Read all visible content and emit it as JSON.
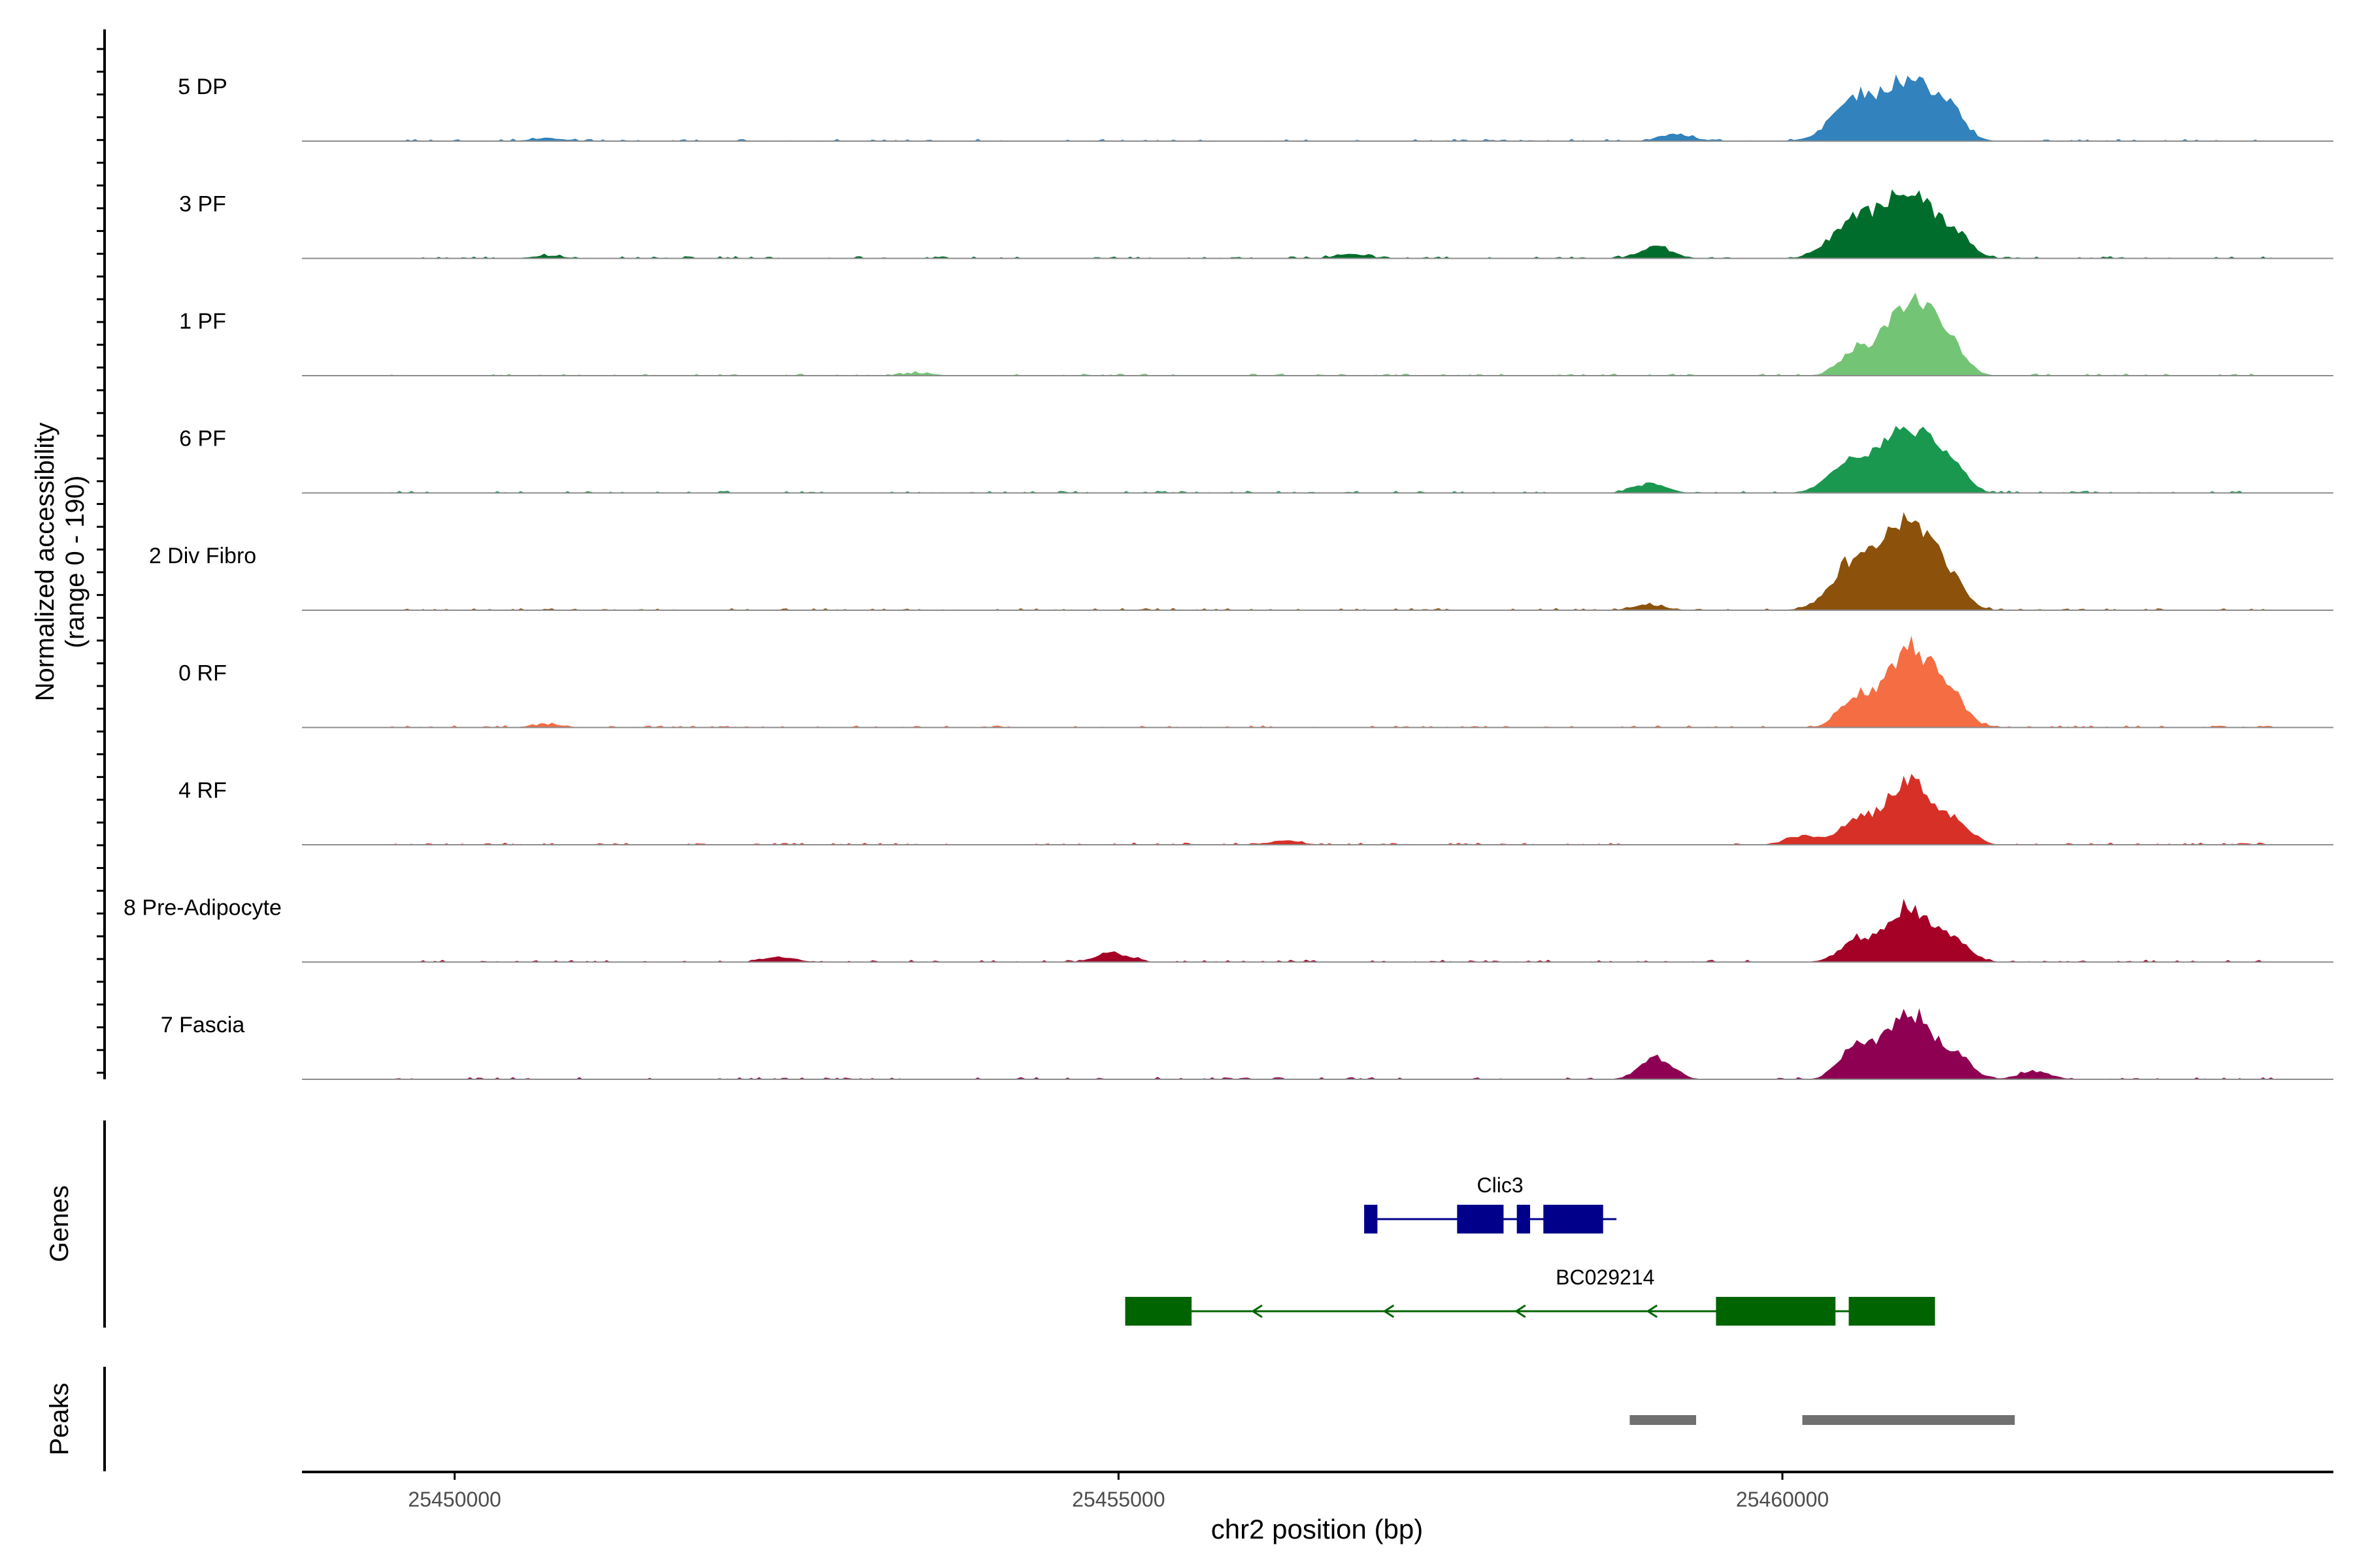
{
  "chart_data": {
    "type": "area",
    "title": "",
    "xlabel": "chr2 position (bp)",
    "ylabel": [
      "Normalized accessibility",
      "(range 0 - 190)"
    ],
    "ylim": [
      0,
      190
    ],
    "xlim": [
      25448850,
      25464150
    ],
    "x_ticks": [
      25450000,
      25455000,
      25460000
    ],
    "x_tick_labels": [
      "25450000",
      "25455000",
      "25460000"
    ],
    "coverage_tracks": [
      {
        "name": "5 DP",
        "color": "#3182bd",
        "peaks": [
          [
            25450700,
            6
          ],
          [
            25459200,
            14
          ],
          [
            25460550,
            80
          ],
          [
            25460950,
            115
          ],
          [
            25461250,
            55
          ]
        ]
      },
      {
        "name": "3 PF",
        "color": "#006d2c",
        "peaks": [
          [
            25450700,
            5
          ],
          [
            25456750,
            8
          ],
          [
            25459050,
            22
          ],
          [
            25460550,
            75
          ],
          [
            25460950,
            130
          ],
          [
            25461300,
            45
          ]
        ]
      },
      {
        "name": "1 PF",
        "color": "#74c476",
        "peaks": [
          [
            25453500,
            5
          ],
          [
            25460550,
            45
          ],
          [
            25460950,
            140
          ],
          [
            25461250,
            60
          ]
        ]
      },
      {
        "name": "6 PF",
        "color": "#1a9850",
        "peaks": [
          [
            25459000,
            18
          ],
          [
            25460550,
            65
          ],
          [
            25460950,
            120
          ],
          [
            25461250,
            55
          ]
        ]
      },
      {
        "name": "2 Div Fibro",
        "color": "#8c510a",
        "peaks": [
          [
            25459000,
            10
          ],
          [
            25460550,
            95
          ],
          [
            25460950,
            170
          ],
          [
            25461250,
            55
          ]
        ]
      },
      {
        "name": "0 RF",
        "color": "#f46d43",
        "peaks": [
          [
            25450700,
            6
          ],
          [
            25460550,
            55
          ],
          [
            25460950,
            150
          ],
          [
            25461250,
            60
          ]
        ]
      },
      {
        "name": "4 RF",
        "color": "#d73027",
        "peaks": [
          [
            25456250,
            8
          ],
          [
            25460150,
            18
          ],
          [
            25460550,
            45
          ],
          [
            25460950,
            125
          ],
          [
            25461300,
            40
          ]
        ]
      },
      {
        "name": "8 Pre-Adipocyte",
        "color": "#a50026",
        "peaks": [
          [
            25452450,
            10
          ],
          [
            25454950,
            18
          ],
          [
            25460550,
            40
          ],
          [
            25460950,
            105
          ],
          [
            25461300,
            35
          ]
        ]
      },
      {
        "name": "7 Fascia",
        "color": "#8e0152",
        "peaks": [
          [
            25459050,
            40
          ],
          [
            25460550,
            60
          ],
          [
            25460950,
            130
          ],
          [
            25461300,
            40
          ],
          [
            25461900,
            15
          ]
        ]
      }
    ],
    "genes": [
      {
        "name": "Clic3",
        "color": "#00008b",
        "start": 25456850,
        "end": 25458750,
        "strand": "+",
        "exons": [
          [
            25456850,
            25456950
          ],
          [
            25457550,
            25457900
          ],
          [
            25458000,
            25458100
          ],
          [
            25458200,
            25458650
          ]
        ]
      },
      {
        "name": "BC029214",
        "color": "#006400",
        "start": 25455050,
        "end": 25461000,
        "strand": "-",
        "exons": [
          [
            25455050,
            25455550
          ],
          [
            25459500,
            25460400
          ],
          [
            25460500,
            25461150
          ]
        ]
      }
    ],
    "peaks": [
      [
        25458850,
        25459350
      ],
      [
        25460150,
        25461750
      ]
    ],
    "track_labels": {
      "genes": "Genes",
      "peaks": "Peaks"
    }
  }
}
